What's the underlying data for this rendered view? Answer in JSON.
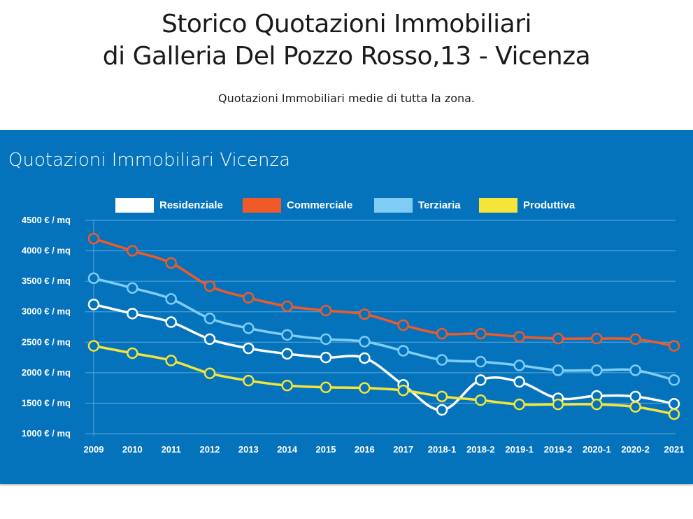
{
  "header": {
    "title_line1": "Storico Quotazioni Immobiliari",
    "title_line2": "di Galleria Del Pozzo Rosso,13 - Vicenza",
    "subtitle": "Quotazioni Immobiliari medie di tutta la zona."
  },
  "panel": {
    "title": "Quotazioni Immobiliari Vicenza",
    "background": "#0573bc"
  },
  "chart_data": {
    "type": "line",
    "title": "Quotazioni Immobiliari Vicenza",
    "xlabel": "",
    "ylabel": "",
    "ylim": [
      1000,
      4500
    ],
    "y_ticks": [
      1000,
      1500,
      2000,
      2500,
      3000,
      3500,
      4000,
      4500
    ],
    "y_tick_suffix": " € / mq",
    "grid": true,
    "legend_position": "top",
    "categories": [
      "2009",
      "2010",
      "2011",
      "2012",
      "2013",
      "2014",
      "2015",
      "2016",
      "2017",
      "2018-1",
      "2018-2",
      "2019-1",
      "2019-2",
      "2020-1",
      "2020-2",
      "2021"
    ],
    "series": [
      {
        "name": "Residenziale",
        "color": "#ffffff",
        "values": [
          3120,
          2970,
          2830,
          2550,
          2400,
          2310,
          2250,
          2240,
          1800,
          1390,
          1880,
          1850,
          1580,
          1620,
          1610,
          1490
        ]
      },
      {
        "name": "Commerciale",
        "color": "#f05a28",
        "values": [
          4200,
          4000,
          3800,
          3420,
          3230,
          3090,
          3020,
          2960,
          2780,
          2640,
          2640,
          2590,
          2560,
          2560,
          2550,
          2440
        ]
      },
      {
        "name": "Terziaria",
        "color": "#7fcdf5",
        "values": [
          3550,
          3390,
          3210,
          2890,
          2730,
          2620,
          2550,
          2510,
          2360,
          2210,
          2180,
          2120,
          2040,
          2040,
          2040,
          1880
        ]
      },
      {
        "name": "Produttiva",
        "color": "#f5e43a",
        "values": [
          2440,
          2320,
          2200,
          1990,
          1870,
          1790,
          1760,
          1750,
          1710,
          1610,
          1550,
          1480,
          1480,
          1480,
          1440,
          1320
        ]
      }
    ]
  }
}
